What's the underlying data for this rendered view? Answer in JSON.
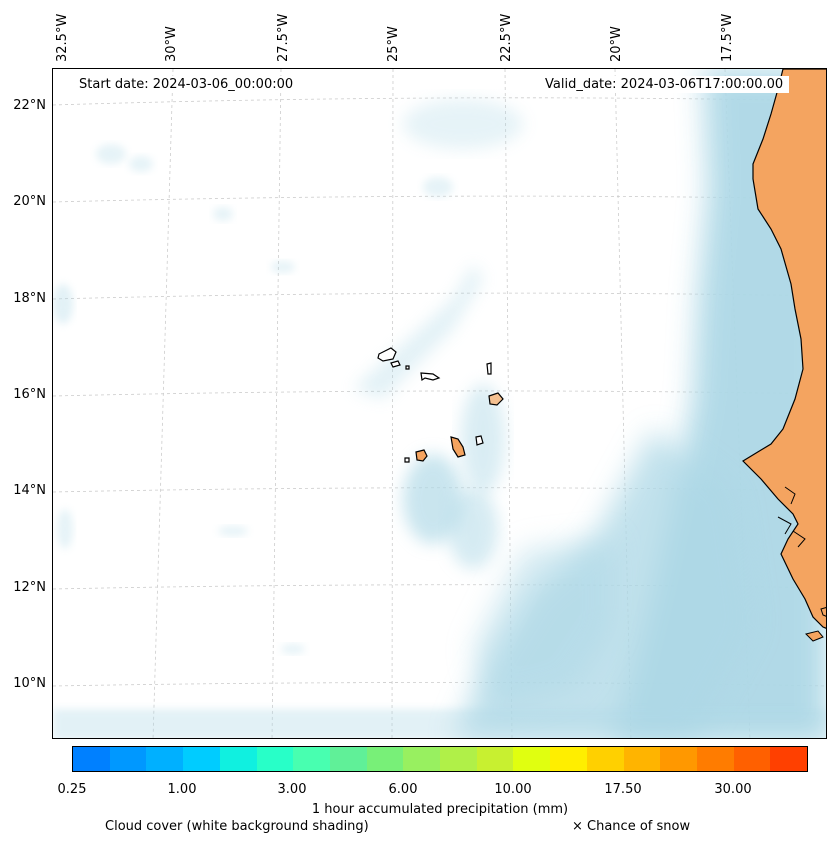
{
  "map": {
    "start_date": "Start date: 2024-03-06_00:00:00",
    "valid_date": "Valid_date: 2024-03-06T17:00:00.00",
    "longitude_labels": [
      "32.5°W",
      "30°W",
      "27.5°W",
      "25°W",
      "22.5°W",
      "20°W",
      "17.5°W"
    ],
    "latitude_labels": [
      "22°N",
      "20°N",
      "18°N",
      "16°N",
      "14°N",
      "12°N",
      "10°N"
    ],
    "gridlines": true,
    "land_color": "#f4a460",
    "cloud_color": "#add8e6",
    "ocean_color": "#ffffff"
  },
  "colorbar": {
    "label": "1 hour accumulated precipitation (mm)",
    "tick_labels": [
      "0.25",
      "1.00",
      "3.00",
      "6.00",
      "10.00",
      "17.50",
      "30.00"
    ],
    "colors": [
      "#0080ff",
      "#0098ff",
      "#00b0ff",
      "#00ccff",
      "#10f0e0",
      "#28ffc8",
      "#48ffb0",
      "#60f098",
      "#78f078",
      "#98f060",
      "#b0f048",
      "#c8f030",
      "#e0ff10",
      "#ffee00",
      "#ffd000",
      "#ffb400",
      "#ff9800",
      "#ff7c00",
      "#ff6000",
      "#ff4000"
    ]
  },
  "legend": {
    "cloud_note": "Cloud cover (white background shading)",
    "snow_note": "× Chance of snow"
  }
}
